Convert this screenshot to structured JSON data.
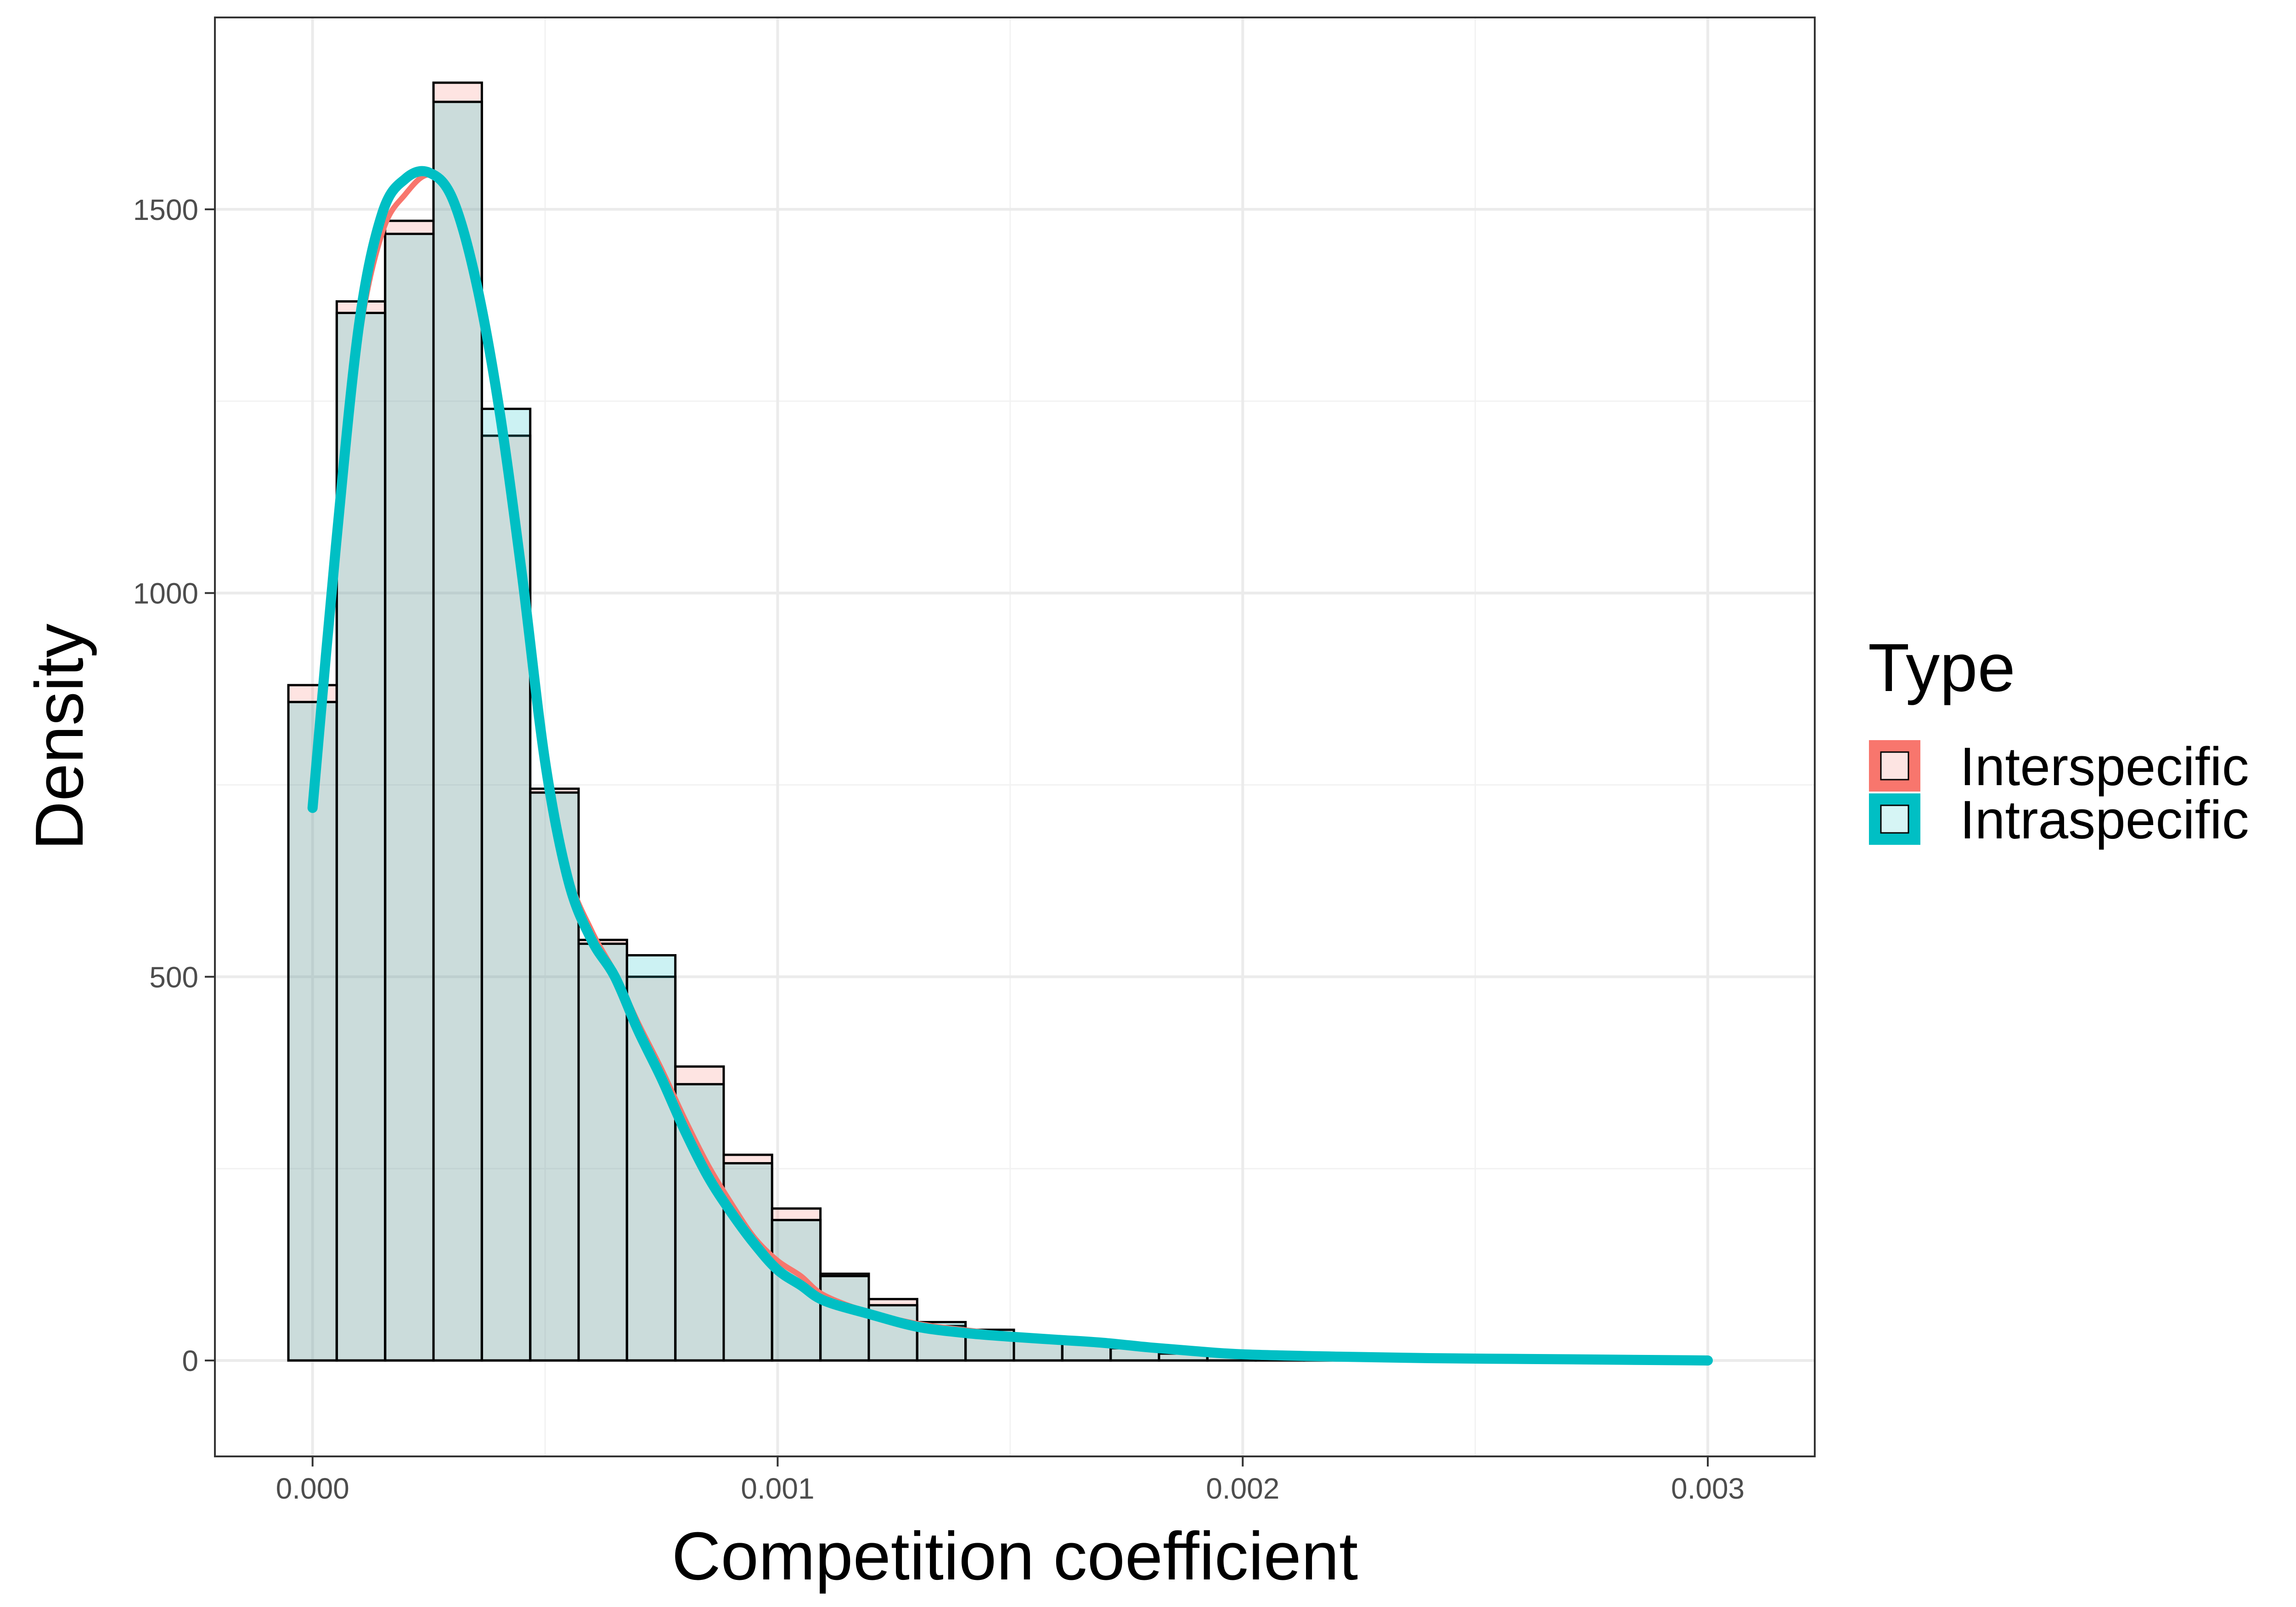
{
  "chart_data": {
    "type": "bar",
    "subtype": "overlaid histogram with density curves",
    "xlabel": "Competition coefficient",
    "ylabel": "Density",
    "xlim": [
      -0.00021,
      0.00323
    ],
    "ylim": [
      -125,
      1750
    ],
    "x_ticks": [
      0.0,
      0.001,
      0.002,
      0.003
    ],
    "x_tick_labels": [
      "0.000",
      "0.001",
      "0.002",
      "0.003"
    ],
    "y_ticks": [
      0,
      500,
      1000,
      1500
    ],
    "y_tick_labels": [
      "0",
      "500",
      "1000",
      "1500"
    ],
    "grid": true,
    "legend": {
      "title": "Type",
      "position": "right"
    },
    "bin_width": 0.000104,
    "bin_starts": [
      -5.2e-05,
      5.2e-05,
      0.000156,
      0.00026,
      0.000364,
      0.000468,
      0.000572,
      0.000676,
      0.00078,
      0.000884,
      0.000988,
      0.001092,
      0.001196,
      0.0013,
      0.001404,
      0.001508,
      0.001612,
      0.001716,
      0.00182,
      0.001924,
      0.002028,
      0.002132,
      0.002236,
      0.00234,
      0.002444,
      0.002548,
      0.002652,
      0.002756,
      0.00286,
      0.002964
    ],
    "series": [
      {
        "name": "Interspecific",
        "color": "#F8766D",
        "fill": "#FDE4E2",
        "values": [
          880,
          1380,
          1485,
          1665,
          1205,
          745,
          548,
          500,
          383,
          268,
          198,
          113,
          80,
          45,
          40,
          30,
          25,
          18,
          10,
          7,
          5,
          4,
          3,
          2,
          1,
          1,
          1,
          1,
          0,
          0
        ],
        "density_x": [
          0,
          5e-05,
          0.0001,
          0.00015,
          0.0002,
          0.00025,
          0.0003,
          0.00035,
          0.0004,
          0.00045,
          0.0005,
          0.00055,
          0.0006,
          0.00065,
          0.0007,
          0.00075,
          0.0008,
          0.00085,
          0.0009,
          0.00095,
          0.001,
          0.00105,
          0.0011,
          0.0012,
          0.0013,
          0.0014,
          0.0015,
          0.0016,
          0.0017,
          0.0018,
          0.0019,
          0.002,
          0.0022,
          0.0024,
          0.0026,
          0.0028,
          0.003
        ],
        "density_y": [
          730,
          1050,
          1330,
          1470,
          1520,
          1545,
          1520,
          1420,
          1260,
          1040,
          790,
          635,
          560,
          505,
          440,
          380,
          315,
          255,
          205,
          160,
          130,
          110,
          85,
          62,
          48,
          40,
          33,
          28,
          24,
          18,
          13,
          9,
          6,
          4,
          2,
          1,
          0
        ]
      },
      {
        "name": "Intraspecific",
        "color": "#00BFC4",
        "fill": "#D6F5F5",
        "values": [
          858,
          1365,
          1468,
          1640,
          1240,
          740,
          543,
          528,
          360,
          257,
          183,
          110,
          72,
          50,
          35,
          28,
          22,
          16,
          9,
          6,
          4,
          3,
          2,
          2,
          1,
          1,
          1,
          1,
          0,
          0
        ],
        "density_x": [
          0,
          5e-05,
          0.0001,
          0.00015,
          0.0002,
          0.00025,
          0.0003,
          0.00035,
          0.0004,
          0.00045,
          0.0005,
          0.00055,
          0.0006,
          0.00065,
          0.0007,
          0.00075,
          0.0008,
          0.00085,
          0.0009,
          0.00095,
          0.001,
          0.00105,
          0.0011,
          0.0012,
          0.0013,
          0.0014,
          0.0015,
          0.0016,
          0.0017,
          0.0018,
          0.0019,
          0.002,
          0.0022,
          0.0024,
          0.0026,
          0.0028,
          0.003
        ],
        "density_y": [
          720,
          1060,
          1350,
          1495,
          1540,
          1548,
          1515,
          1410,
          1245,
          1025,
          780,
          625,
          548,
          500,
          430,
          368,
          300,
          240,
          193,
          152,
          118,
          98,
          78,
          60,
          44,
          36,
          31,
          27,
          23,
          17,
          12,
          8,
          5,
          3,
          2,
          1,
          0
        ]
      }
    ]
  }
}
